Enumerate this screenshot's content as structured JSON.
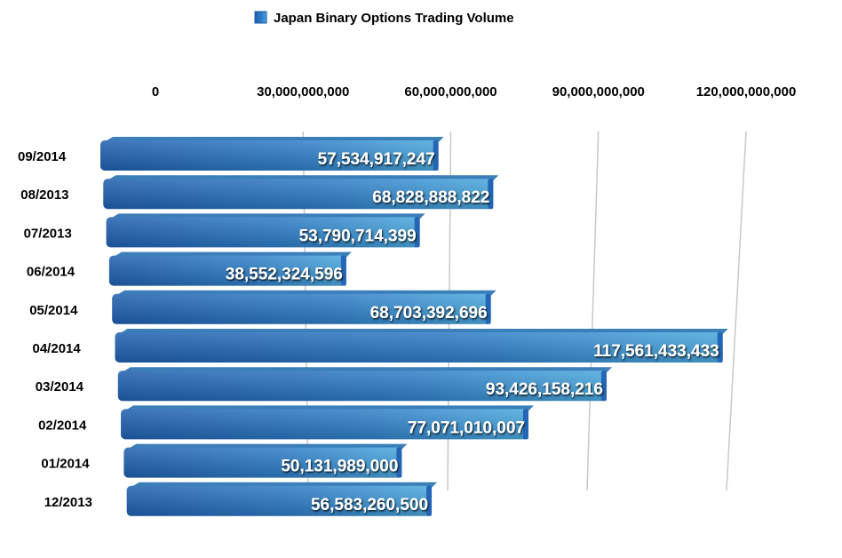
{
  "chart_data": {
    "type": "bar",
    "orientation": "horizontal",
    "title": "",
    "legend": {
      "entries": [
        "Japan Binary Options Trading Volume"
      ],
      "placement": "top"
    },
    "categories": [
      "09/2014",
      "08/2013",
      "07/2013",
      "06/2014",
      "05/2014",
      "04/2014",
      "03/2014",
      "02/2014",
      "01/2014",
      "12/2013"
    ],
    "series": [
      {
        "name": "Japan Binary Options Trading Volume",
        "values": [
          57534917247,
          68828888822,
          53790714399,
          38552324596,
          68703392696,
          117561433433,
          93426158216,
          77071010007,
          50131989000,
          56583260500
        ]
      }
    ],
    "data_labels": [
      "57,534,917,247",
      "68,828,888,822",
      "53,790,714,399",
      "38,552,324,596",
      "68,703,392,696",
      "117,561,433,433",
      "93,426,158,216",
      "77,071,010,007",
      "50,131,989,000",
      "56,583,260,500"
    ],
    "x_ticks": [
      0,
      30000000000,
      60000000000,
      90000000000,
      120000000000
    ],
    "x_tick_labels": [
      "0",
      "30,000,000,000",
      "60,000,000,000",
      "90,000,000,000",
      "120,000,000,000"
    ],
    "xlim": [
      0,
      120000000000
    ],
    "grid": true,
    "colors": {
      "bar": "#2f78c4",
      "bar_light": "#4aa3dc",
      "bar_dark": "#1d5aa8"
    }
  }
}
